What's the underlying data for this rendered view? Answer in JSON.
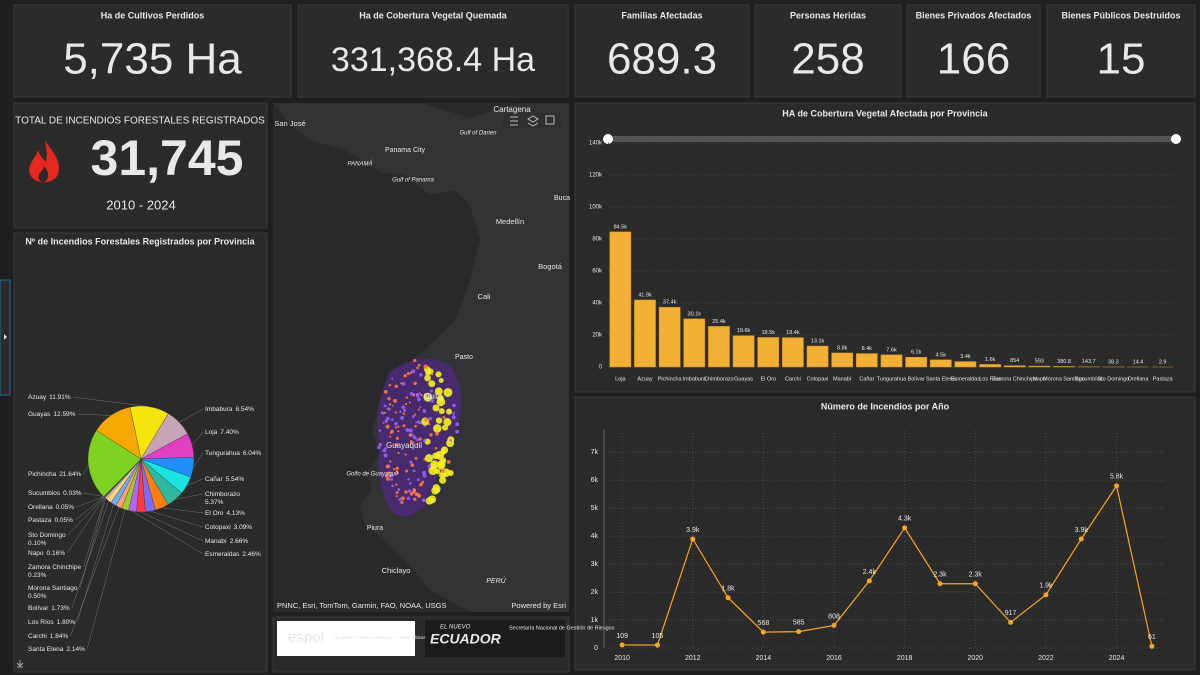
{
  "kpis": [
    {
      "label": "Ha de Cultivos Perdidos",
      "value": "5,735 Ha"
    },
    {
      "label": "Ha de Cobertura Vegetal Quemada",
      "value": "331,368.4 Ha"
    },
    {
      "label": "Familias Afectadas",
      "value": "689.3"
    },
    {
      "label": "Personas Heridas",
      "value": "258"
    },
    {
      "label": "Bienes Privados Afectados",
      "value": "166"
    },
    {
      "label": "Bienes Públicos Destruidos",
      "value": "15"
    }
  ],
  "total": {
    "title": "TOTAL DE INCENDIOS FORESTALES REGISTRADOS",
    "value": "31,745",
    "period": "2010 - 2024"
  },
  "map": {
    "labels": [
      "Cartagena",
      "San José",
      "Gulf of Darien",
      "PANAMÁ",
      "Panama City",
      "Gulf of Panama",
      "Buca",
      "Medellín",
      "Bogotá",
      "Cali",
      "Pasto",
      "Quito",
      "Guayaquil",
      "Golfo de Guayaquil",
      "Piura",
      "Chiclayo",
      "PERÚ"
    ],
    "attribution": "PNNC, Esri, TomTom, Garmin, FAO, NOAA, USGS",
    "powered_by": "Powered by Esri"
  },
  "logos": {
    "espol": "espol",
    "espol_faculty": "Facultad de Ciencias Naturales y Matemáticas",
    "ecuador_top": "EL NUEVO",
    "ecuador": "ECUADOR",
    "secretaria": "Secretaría Nacional de Gestión de Riesgos"
  },
  "chart_data": [
    {
      "type": "pie",
      "title": "Nº de Incendios Forestales Registrados por Provincia",
      "categories": [
        "Azuay",
        "Imbabura",
        "Loja",
        "Tungurahua",
        "Cañar",
        "Chimborazo",
        "El Oro",
        "Cotopaxi",
        "Manabí",
        "Esmeraldas",
        "Santa Elena",
        "Carchi",
        "Los Ríos",
        "Bolívar",
        "Morona Santiago",
        "Zamora Chinchipe",
        "Napo",
        "Sto Domingo",
        "Pastaza",
        "Orellana",
        "Sucumbios",
        "Pichincha",
        "Guayas"
      ],
      "values": [
        11.91,
        8.54,
        7.4,
        6.04,
        5.54,
        5.37,
        4.13,
        3.09,
        2.66,
        2.46,
        2.14,
        1.84,
        1.8,
        1.73,
        0.5,
        0.23,
        0.16,
        0.1,
        0.05,
        0.05,
        0.03,
        21.64,
        12.59
      ],
      "value_labels": [
        "11.91%",
        "8.54%",
        "7.40%",
        "6.04%",
        "5.54%",
        "5.37%",
        "4.13%",
        "3.09%",
        "2.66%",
        "2.46%",
        "2.14%",
        "1.84%",
        "1.80%",
        "1.73%",
        "0.50%",
        "0.23%",
        "0.16%",
        "0.10%",
        "0.05%",
        "0.05%",
        "0.03%",
        "21.64%",
        "12.59%"
      ],
      "colors": [
        "#f5e50c",
        "#c7a3b6",
        "#e23fc4",
        "#1f8fff",
        "#19e3e3",
        "#2fb8a0",
        "#ff7f0e",
        "#7b6cff",
        "#ff3b3b",
        "#b463ff",
        "#9acd32",
        "#ff9f6e",
        "#6ab0ff",
        "#ffd27a",
        "#e0e0e0",
        "#ff66a3",
        "#66ffcc",
        "#cc9966",
        "#9999ff",
        "#ffcc00",
        "#66cc66",
        "#7ed321",
        "#f5a800"
      ]
    },
    {
      "type": "bar",
      "title": "HA de Cobertura Vegetal Afectada por Provincia",
      "categories": [
        "Loja",
        "Azuay",
        "Pichincha",
        "Imbabura",
        "Chimborazo",
        "Guayas",
        "El Oro",
        "Carchi",
        "Cotopaxi",
        "Manabí",
        "Cañar",
        "Tungurahua",
        "Bolívar",
        "Santa Elena",
        "Esmeraldas",
        "Los Ríos",
        "Zamora Chinchipe",
        "Napo",
        "Morona Santiago",
        "Sucumbíos",
        "Sto Domingo",
        "Orellana",
        "Pastaza"
      ],
      "values": [
        84500,
        41900,
        37400,
        30100,
        25400,
        19600,
        18500,
        18400,
        13100,
        8800,
        8400,
        7600,
        6100,
        4500,
        3400,
        1600,
        854,
        593,
        380.8,
        143.7,
        38.3,
        14.4,
        2.9
      ],
      "value_labels": [
        "84.5k",
        "41.9k",
        "37.4k",
        "30.1k",
        "25.4k",
        "19.6k",
        "18.5k",
        "18.4k",
        "13.1k",
        "8.8k",
        "8.4k",
        "7.6k",
        "6.1k",
        "4.5k",
        "3.4k",
        "1.6k",
        "854",
        "593",
        "380.8",
        "143.7",
        "38.3",
        "14.4",
        "2.9"
      ],
      "color": "#f2b134",
      "ylim": [
        0,
        140000
      ],
      "yticks": [
        0,
        {
          "value": 20000,
          "label": "20k"
        },
        {
          "value": 40000,
          "label": "40k"
        },
        {
          "value": 60000,
          "label": "60k"
        },
        {
          "value": 80000,
          "label": "80k"
        },
        {
          "value": 100000,
          "label": "100k"
        },
        {
          "value": 120000,
          "label": "120k"
        },
        {
          "value": 140000,
          "label": "140k"
        }
      ],
      "grid": true
    },
    {
      "type": "line",
      "title": "Número de Incendios por Año",
      "x": [
        2010,
        2011,
        2012,
        2013,
        2014,
        2015,
        2016,
        2017,
        2018,
        2019,
        2020,
        2021,
        2022,
        2023,
        2024,
        2025
      ],
      "values": [
        109,
        105,
        3900,
        1800,
        568,
        585,
        808,
        2400,
        4300,
        2300,
        2300,
        917,
        1900,
        3900,
        5800,
        61
      ],
      "value_labels": [
        "109",
        "105",
        "3.9k",
        "1.8k",
        "568",
        "585",
        "808",
        "2.4k",
        "4.3k",
        "2.3k",
        "2.3k",
        "917",
        "1.9k",
        "3.9k",
        "5.8k",
        "61"
      ],
      "color": "#f5a623",
      "xlim": [
        2009.6,
        2025.4
      ],
      "xticks": [
        2010,
        2012,
        2014,
        2016,
        2018,
        2020,
        2022,
        2024
      ],
      "ylim": [
        0,
        7800
      ],
      "yticks": [
        0,
        {
          "value": 1000,
          "label": "1k"
        },
        {
          "value": 2000,
          "label": "2k"
        },
        {
          "value": 3000,
          "label": "3k"
        },
        {
          "value": 4000,
          "label": "4k"
        },
        {
          "value": 5000,
          "label": "5k"
        },
        {
          "value": 6000,
          "label": "6k"
        },
        {
          "value": 7000,
          "label": "7k"
        }
      ],
      "grid": true
    }
  ]
}
